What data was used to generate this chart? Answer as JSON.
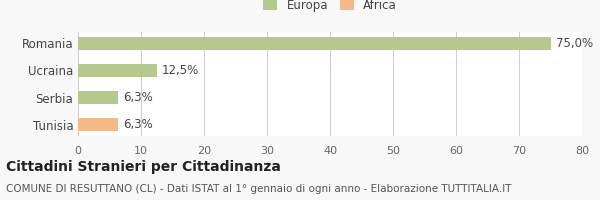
{
  "categories": [
    "Romania",
    "Ucraina",
    "Serbia",
    "Tunisia"
  ],
  "values": [
    75.0,
    12.5,
    6.3,
    6.3
  ],
  "labels": [
    "75,0%",
    "12,5%",
    "6,3%",
    "6,3%"
  ],
  "colors": [
    "#b5c98e",
    "#b5c98e",
    "#b5c98e",
    "#f5b887"
  ],
  "legend": [
    {
      "label": "Europa",
      "color": "#b5c98e"
    },
    {
      "label": "Africa",
      "color": "#f5b887"
    }
  ],
  "xlim": [
    0,
    80
  ],
  "xticks": [
    0,
    10,
    20,
    30,
    40,
    50,
    60,
    70,
    80
  ],
  "title": "Cittadini Stranieri per Cittadinanza",
  "subtitle": "COMUNE DI RESUTTANO (CL) - Dati ISTAT al 1° gennaio di ogni anno - Elaborazione TUTTITALIA.IT",
  "bar_height": 0.5,
  "background_color": "#f8f8f8",
  "plot_bg_color": "#ffffff",
  "grid_color": "#cccccc",
  "label_fontsize": 8.5,
  "tick_fontsize": 8,
  "title_fontsize": 10,
  "subtitle_fontsize": 7.5
}
